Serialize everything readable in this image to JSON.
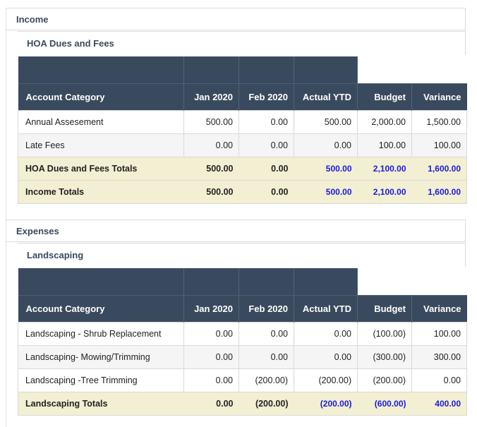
{
  "columns": [
    "Account Category",
    "Jan 2020",
    "Feb 2020",
    "Actual YTD",
    "Budget",
    "Variance"
  ],
  "income": {
    "title": "Income",
    "subsection_title": "HOA Dues and Fees",
    "rows": [
      [
        "Annual Assesement",
        "500.00",
        "0.00",
        "500.00",
        "2,000.00",
        "1,500.00"
      ],
      [
        "Late Fees",
        "0.00",
        "0.00",
        "0.00",
        "100.00",
        "100.00"
      ]
    ],
    "subtotal": [
      "HOA Dues and Fees Totals",
      "500.00",
      "0.00",
      "500.00",
      "2,100.00",
      "1,600.00"
    ],
    "total": [
      "Income Totals",
      "500.00",
      "0.00",
      "500.00",
      "2,100.00",
      "1,600.00"
    ]
  },
  "expenses": {
    "title": "Expenses",
    "subsection_title": "Landscaping",
    "rows": [
      [
        "Landscaping - Shrub Replacement",
        "0.00",
        "0.00",
        "0.00",
        "(100.00)",
        "100.00"
      ],
      [
        "Landscaping- Mowing/Trimming",
        "0.00",
        "0.00",
        "0.00",
        "(300.00)",
        "300.00"
      ],
      [
        "Landscaping -Tree Trimming",
        "0.00",
        "(200.00)",
        "(200.00)",
        "(200.00)",
        "0.00"
      ]
    ],
    "subtotal": [
      "Landscaping Totals",
      "0.00",
      "(200.00)",
      "(200.00)",
      "(600.00)",
      "400.00"
    ]
  }
}
